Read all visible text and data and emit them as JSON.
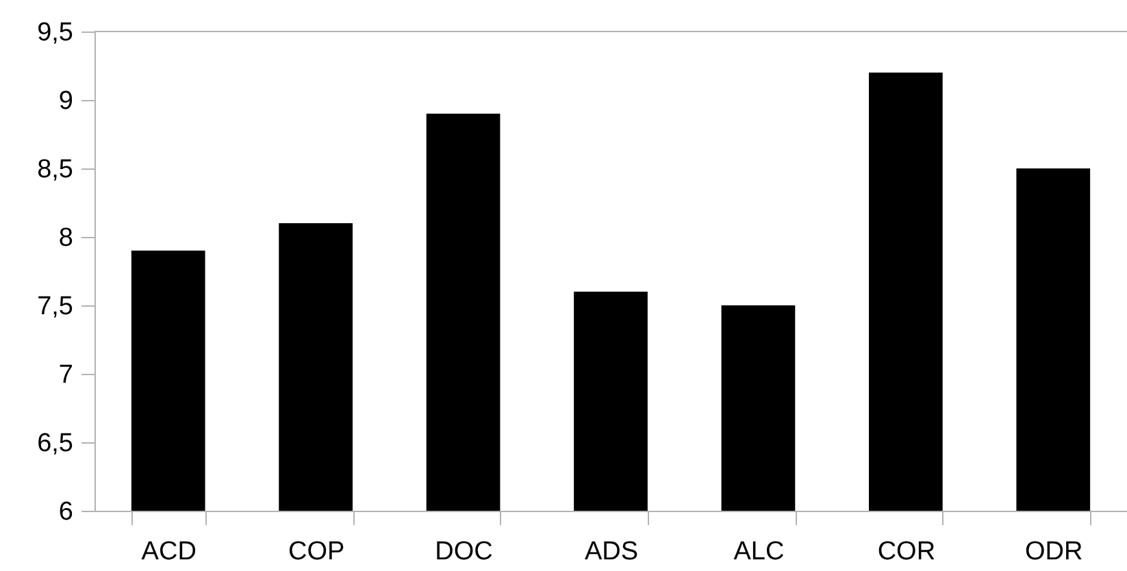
{
  "chart_data": {
    "type": "bar",
    "categories": [
      "ACD",
      "COP",
      "DOC",
      "ADS",
      "ALC",
      "COR",
      "ODR"
    ],
    "values": [
      7.9,
      8.1,
      8.9,
      7.6,
      7.5,
      9.2,
      8.5
    ],
    "color": "#000000",
    "ylim": [
      6,
      9.5
    ],
    "yticks": [
      6,
      {
        "value": 6.5,
        "label": "6,5"
      },
      7,
      {
        "value": 7.5,
        "label": "7,5"
      },
      8,
      {
        "value": 8.5,
        "label": "8,5"
      },
      9,
      {
        "value": 9.5,
        "label": "9,5"
      }
    ]
  }
}
